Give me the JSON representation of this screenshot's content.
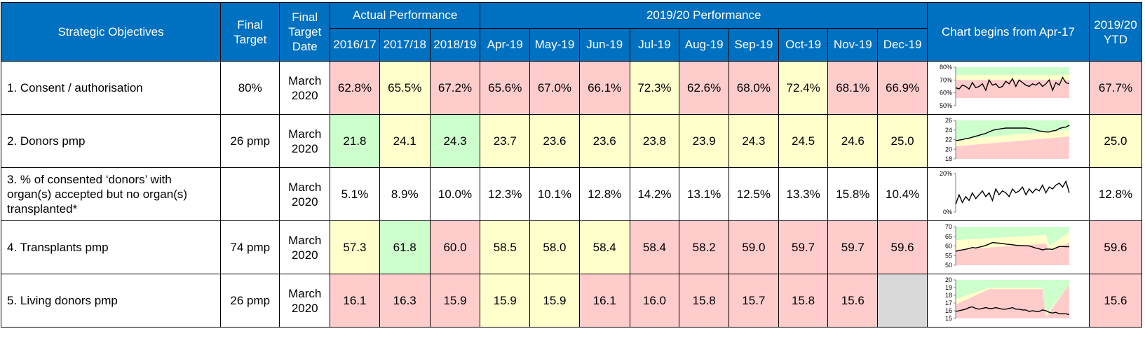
{
  "header": {
    "objectives": "Strategic Objectives",
    "final_target": [
      "Final",
      "Target"
    ],
    "final_target_date": [
      "Final",
      "Target",
      "Date"
    ],
    "actual_performance": "Actual Performance",
    "current_performance": "2019/20 Performance",
    "chart_title": "Chart begins from Apr-17",
    "ytd": [
      "2019/20",
      "YTD"
    ],
    "years": [
      "2016/17",
      "2017/18",
      "2018/19"
    ],
    "months": [
      "Apr-19",
      "May-19",
      "Jun-19",
      "Jul-19",
      "Aug-19",
      "Sep-19",
      "Oct-19",
      "Nov-19",
      "Dec-19"
    ]
  },
  "colors": {
    "header_blue": "#0070c0",
    "red": "#ffcccc",
    "yellow": "#ffffcc",
    "green": "#ccffcc",
    "grey": "#d9d9d9"
  },
  "rows": [
    {
      "objective": [
        "1. Consent / authorisation"
      ],
      "target": "80%",
      "date": [
        "March",
        "2020"
      ],
      "years": [
        {
          "v": "62.8%",
          "c": "red"
        },
        {
          "v": "65.5%",
          "c": "yellow"
        },
        {
          "v": "67.2%",
          "c": "red"
        }
      ],
      "months": [
        {
          "v": "65.6%",
          "c": "red"
        },
        {
          "v": "67.0%",
          "c": "red"
        },
        {
          "v": "66.1%",
          "c": "red"
        },
        {
          "v": "72.3%",
          "c": "yellow"
        },
        {
          "v": "62.6%",
          "c": "red"
        },
        {
          "v": "68.0%",
          "c": "red"
        },
        {
          "v": "72.4%",
          "c": "yellow"
        },
        {
          "v": "68.1%",
          "c": "red"
        },
        {
          "v": "66.9%",
          "c": "red"
        }
      ],
      "ytd": {
        "v": "67.7%",
        "c": "red"
      },
      "spark": {
        "ticks": [
          "80%",
          "70%",
          "60%",
          "50%"
        ],
        "min": 50,
        "max": 80,
        "bands": "consent",
        "series": [
          64,
          63,
          66,
          65,
          63,
          68,
          64,
          65,
          67,
          62,
          70,
          66,
          67,
          64,
          65,
          69,
          67,
          71,
          65,
          70,
          68,
          66,
          65,
          67,
          66,
          68,
          65,
          67,
          70,
          62,
          68,
          66,
          72,
          68,
          67
        ]
      }
    },
    {
      "objective": [
        "2. Donors pmp"
      ],
      "target": "26 pmp",
      "date": [
        "March",
        "2020"
      ],
      "years": [
        {
          "v": "21.8",
          "c": "green"
        },
        {
          "v": "24.1",
          "c": "yellow"
        },
        {
          "v": "24.3",
          "c": "green"
        }
      ],
      "months": [
        {
          "v": "23.7",
          "c": "yellow"
        },
        {
          "v": "23.6",
          "c": "yellow"
        },
        {
          "v": "23.6",
          "c": "yellow"
        },
        {
          "v": "23.8",
          "c": "yellow"
        },
        {
          "v": "23.9",
          "c": "yellow"
        },
        {
          "v": "24.3",
          "c": "yellow"
        },
        {
          "v": "24.5",
          "c": "yellow"
        },
        {
          "v": "24.6",
          "c": "yellow"
        },
        {
          "v": "25.0",
          "c": "yellow"
        }
      ],
      "ytd": {
        "v": "25.0",
        "c": "yellow"
      },
      "spark": {
        "ticks": [
          "26",
          "24",
          "22",
          "20",
          "18"
        ],
        "min": 18,
        "max": 26,
        "bands": "donors",
        "series": [
          21.8,
          21.9,
          22.0,
          22.2,
          22.3,
          22.5,
          22.7,
          22.9,
          23.1,
          23.3,
          23.6,
          23.9,
          24.1,
          24.2,
          24.3,
          24.4,
          24.4,
          24.4,
          24.4,
          24.4,
          24.4,
          24.4,
          24.3,
          24.2,
          24.0,
          23.8,
          23.7,
          23.6,
          23.6,
          23.8,
          23.9,
          24.3,
          24.5,
          24.6,
          25.0
        ]
      }
    },
    {
      "objective": [
        "3. % of consented ‘donors’ with",
        "organ(s) accepted but no organ(s)",
        "transplanted*"
      ],
      "target": "",
      "date": [
        "March",
        "2020"
      ],
      "years": [
        {
          "v": "5.1%",
          "c": "white"
        },
        {
          "v": "8.9%",
          "c": "white"
        },
        {
          "v": "10.0%",
          "c": "white"
        }
      ],
      "months": [
        {
          "v": "12.3%",
          "c": "white"
        },
        {
          "v": "10.1%",
          "c": "white"
        },
        {
          "v": "12.8%",
          "c": "white"
        },
        {
          "v": "14.2%",
          "c": "white"
        },
        {
          "v": "13.1%",
          "c": "white"
        },
        {
          "v": "12.5%",
          "c": "white"
        },
        {
          "v": "13.3%",
          "c": "white"
        },
        {
          "v": "15.8%",
          "c": "white"
        },
        {
          "v": "10.4%",
          "c": "white"
        }
      ],
      "ytd": {
        "v": "12.8%",
        "c": "white"
      },
      "spark": {
        "ticks": [
          "20%",
          "0%"
        ],
        "min": 0,
        "max": 20,
        "bands": "none",
        "series": [
          4,
          9,
          5,
          8,
          6,
          10,
          7,
          9,
          11,
          8,
          10,
          6,
          12,
          9,
          11,
          10,
          8,
          12,
          10,
          11,
          13,
          9,
          12,
          10,
          12,
          11,
          14,
          10,
          13,
          12,
          14,
          15,
          13,
          16,
          10
        ]
      }
    },
    {
      "objective": [
        "4. Transplants pmp"
      ],
      "target": "74 pmp",
      "date": [
        "March",
        "2020"
      ],
      "years": [
        {
          "v": "57.3",
          "c": "yellow"
        },
        {
          "v": "61.8",
          "c": "green"
        },
        {
          "v": "60.0",
          "c": "red"
        }
      ],
      "months": [
        {
          "v": "58.5",
          "c": "yellow"
        },
        {
          "v": "58.0",
          "c": "yellow"
        },
        {
          "v": "58.4",
          "c": "yellow"
        },
        {
          "v": "58.4",
          "c": "red"
        },
        {
          "v": "58.2",
          "c": "red"
        },
        {
          "v": "59.0",
          "c": "red"
        },
        {
          "v": "59.7",
          "c": "red"
        },
        {
          "v": "59.7",
          "c": "red"
        },
        {
          "v": "59.6",
          "c": "red"
        }
      ],
      "ytd": {
        "v": "59.6",
        "c": "red"
      },
      "spark": {
        "ticks": [
          "70",
          "65",
          "60",
          "55",
          "50"
        ],
        "min": 50,
        "max": 70,
        "bands": "transplants",
        "series": [
          57.3,
          57.6,
          58.0,
          58.3,
          58.7,
          59.2,
          59.0,
          59.4,
          59.8,
          60.3,
          61.0,
          61.8,
          61.6,
          61.5,
          61.3,
          61.0,
          60.8,
          60.6,
          60.4,
          60.3,
          60.2,
          60.1,
          60.0,
          59.5,
          58.9,
          58.5,
          58.0,
          58.4,
          58.4,
          58.2,
          59.0,
          59.7,
          59.7,
          59.6,
          59.6
        ]
      }
    },
    {
      "objective": [
        "5. Living donors pmp"
      ],
      "target": "26 pmp",
      "date": [
        "March",
        "2020"
      ],
      "years": [
        {
          "v": "16.1",
          "c": "red"
        },
        {
          "v": "16.3",
          "c": "red"
        },
        {
          "v": "15.9",
          "c": "red"
        }
      ],
      "months": [
        {
          "v": "15.9",
          "c": "yellow"
        },
        {
          "v": "15.9",
          "c": "yellow"
        },
        {
          "v": "16.1",
          "c": "red"
        },
        {
          "v": "16.0",
          "c": "red"
        },
        {
          "v": "15.8",
          "c": "red"
        },
        {
          "v": "15.7",
          "c": "red"
        },
        {
          "v": "15.8",
          "c": "red"
        },
        {
          "v": "15.6",
          "c": "red"
        },
        {
          "v": "",
          "c": "grey"
        }
      ],
      "ytd": {
        "v": "15.6",
        "c": "red"
      },
      "spark": {
        "ticks": [
          "20",
          "19",
          "18",
          "17",
          "16",
          "15"
        ],
        "min": 15,
        "max": 20,
        "bands": "living",
        "series": [
          15.9,
          16.0,
          16.1,
          16.2,
          16.4,
          16.5,
          16.3,
          16.2,
          16.3,
          16.4,
          16.3,
          16.3,
          16.4,
          16.3,
          16.2,
          16.2,
          16.3,
          16.4,
          16.2,
          16.2,
          16.1,
          16.1,
          15.9,
          16.0,
          15.9,
          15.9,
          16.1,
          16.0,
          15.8,
          15.7,
          15.8,
          15.6,
          15.6,
          15.6,
          15.5
        ]
      }
    }
  ]
}
